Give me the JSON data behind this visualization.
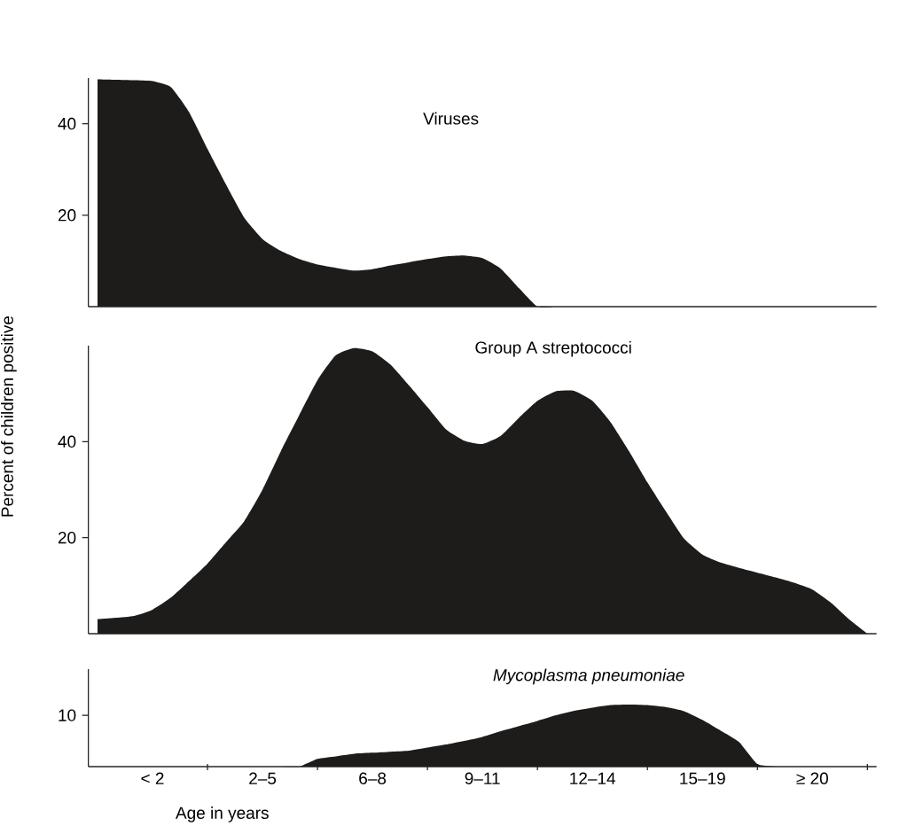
{
  "chart_data": [
    {
      "type": "area",
      "title": "Viruses",
      "ylabel": "Percent of children positive",
      "color": "#1e1c1a",
      "ylim": [
        0,
        50
      ],
      "yticks": [
        20,
        40
      ],
      "tick_labels": "y",
      "categories": [
        null,
        null,
        null,
        null,
        null,
        null,
        null,
        null,
        null,
        null,
        null,
        null,
        null,
        null,
        null,
        null,
        null,
        null,
        null,
        null,
        null,
        null,
        null,
        null,
        null,
        null,
        null,
        null,
        null,
        null,
        null,
        null,
        null,
        null,
        null,
        null,
        null,
        null,
        null,
        null,
        null,
        null,
        null
      ],
      "values": [
        49.7,
        49.6,
        49.5,
        49.3,
        48,
        42.5,
        34.5,
        26.8,
        19.5,
        14.8,
        12.2,
        10.4,
        9.2,
        8.5,
        7.9,
        8.2,
        9.0,
        9.7,
        10.4,
        11.0,
        11.2,
        10.6,
        8.3,
        4.0,
        0,
        0,
        0,
        0,
        0,
        0,
        0,
        0,
        0,
        0,
        0,
        0,
        0,
        0,
        0,
        0,
        0,
        0,
        0
      ]
    },
    {
      "type": "area",
      "title": "Group A streptococci",
      "color": "#1e1c1a",
      "ylim": [
        0,
        60
      ],
      "yticks": [
        20,
        40
      ],
      "tick_labels": "y",
      "categories": [
        null,
        null,
        null,
        null,
        null,
        null,
        null,
        null,
        null,
        null,
        null,
        null,
        null,
        null,
        null,
        null,
        null,
        null,
        null,
        null,
        null,
        null,
        null,
        null,
        null,
        null,
        null,
        null,
        null,
        null,
        null,
        null,
        null,
        null,
        null,
        null,
        null,
        null,
        null,
        null,
        null,
        null,
        null
      ],
      "values": [
        3,
        3.3,
        3.7,
        5.0,
        7.5,
        11,
        14.6,
        19,
        23.4,
        30,
        38,
        45.5,
        52.8,
        58,
        59.5,
        58.8,
        56,
        51.7,
        47.2,
        42.6,
        40.2,
        39.5,
        41.2,
        45,
        48.5,
        50.5,
        50.6,
        48.5,
        44,
        38,
        31.5,
        25.5,
        19.8,
        16.5,
        14.8,
        13.7,
        12.7,
        11.7,
        10.6,
        9.2,
        6.5,
        3.0,
        0
      ]
    },
    {
      "type": "area",
      "title": "*Mycoplasma pneumoniae*",
      "xlabel": "Age in years",
      "color": "#1e1c1a",
      "ylim": [
        0,
        19
      ],
      "yticks": [
        10
      ],
      "categories": [
        null,
        null,
        null,
        "< 2",
        null,
        null,
        null,
        null,
        null,
        "2–5",
        null,
        null,
        null,
        null,
        null,
        "6–8",
        null,
        null,
        null,
        null,
        null,
        "9–11",
        null,
        null,
        null,
        null,
        null,
        "12–14",
        null,
        null,
        null,
        null,
        null,
        "15–19",
        null,
        null,
        null,
        null,
        null,
        "≥ 20",
        null,
        null,
        null
      ],
      "values": [
        0,
        0,
        0,
        0,
        0,
        0,
        0,
        0,
        0,
        0,
        0,
        0,
        1.5,
        2.0,
        2.5,
        2.7,
        2.9,
        3.1,
        3.7,
        4.3,
        5.0,
        5.8,
        6.9,
        7.9,
        8.9,
        10.0,
        10.9,
        11.5,
        12.0,
        12.1,
        12.0,
        11.6,
        10.8,
        9.1,
        7.0,
        4.8,
        0.5,
        0,
        0,
        0,
        0,
        0,
        0
      ]
    }
  ]
}
